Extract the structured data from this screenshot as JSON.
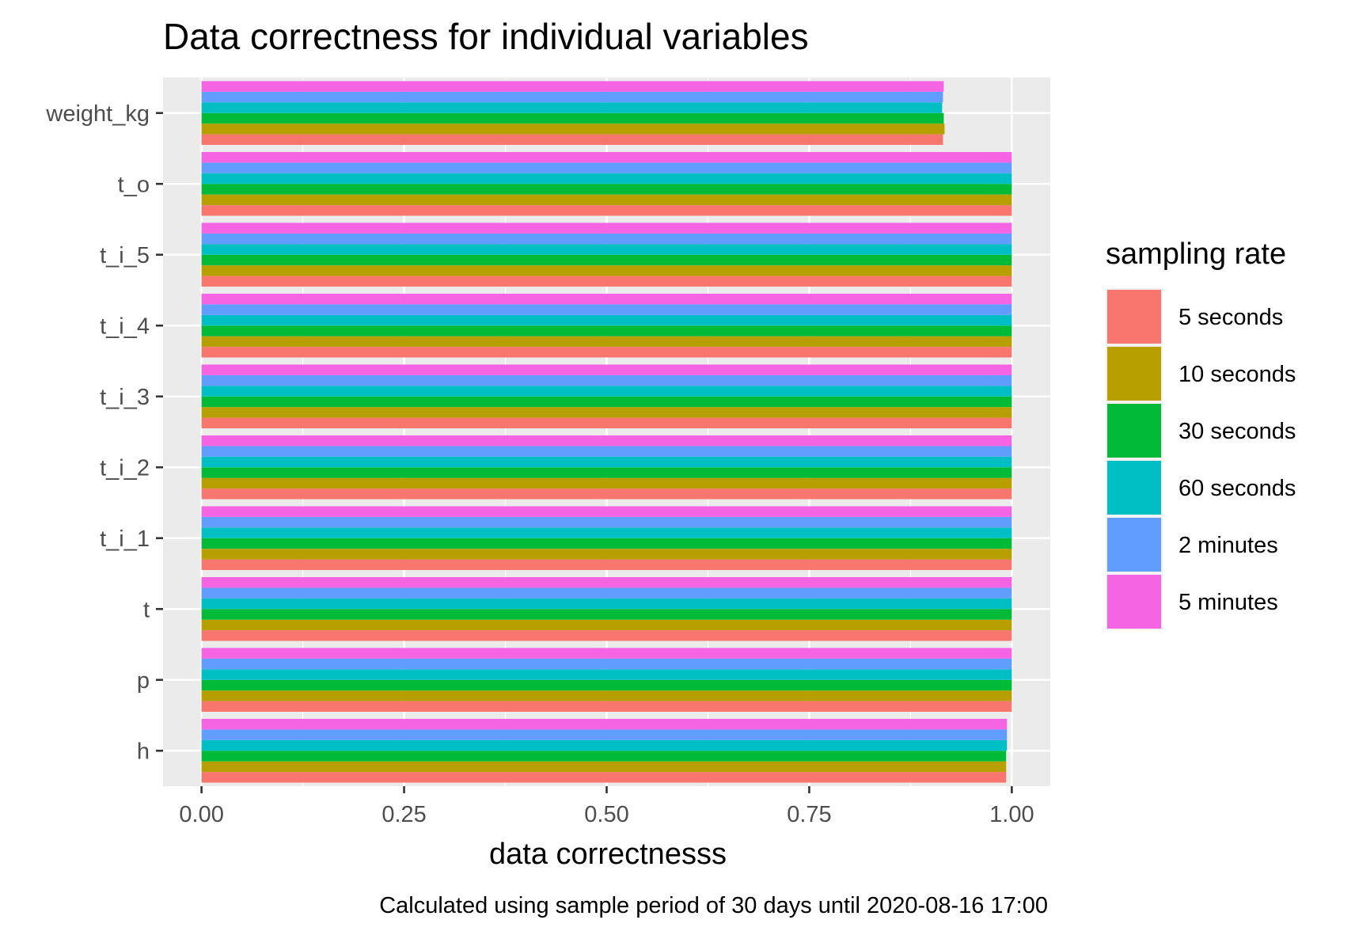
{
  "chart_data": {
    "type": "bar",
    "orientation": "horizontal",
    "title": "Data correctness for individual variables",
    "xlabel": "data correctnesss",
    "ylabel": "",
    "caption": "Calculated using sample period of 30 days until 2020-08-16 17:00",
    "xlim": [
      -0.0475,
      1.0475
    ],
    "x_ticks": [
      0,
      0.25,
      0.5,
      0.75,
      1
    ],
    "x_tick_labels": [
      "0.00",
      "0.25",
      "0.50",
      "0.75",
      "1.00"
    ],
    "categories": [
      "h",
      "p",
      "t",
      "t_i_1",
      "t_i_2",
      "t_i_3",
      "t_i_4",
      "t_i_5",
      "t_o",
      "weight_kg"
    ],
    "grid": true,
    "background": "#ebebeb",
    "legend": {
      "title": "sampling rate",
      "position": "right"
    },
    "series": [
      {
        "name": "5 seconds",
        "color": "#F8766D",
        "values": [
          0.993,
          1.0,
          1.0,
          1.0,
          1.0,
          1.0,
          1.0,
          1.0,
          1.0,
          0.915
        ]
      },
      {
        "name": "10 seconds",
        "color": "#B79F00",
        "values": [
          0.993,
          1.0,
          1.0,
          1.0,
          1.0,
          1.0,
          1.0,
          1.0,
          1.0,
          0.917
        ]
      },
      {
        "name": "30 seconds",
        "color": "#00BA38",
        "values": [
          0.993,
          1.0,
          1.0,
          1.0,
          1.0,
          1.0,
          1.0,
          1.0,
          1.0,
          0.916
        ]
      },
      {
        "name": "60 seconds",
        "color": "#00BFC4",
        "values": [
          0.994,
          1.0,
          1.0,
          1.0,
          1.0,
          1.0,
          1.0,
          1.0,
          1.0,
          0.914
        ]
      },
      {
        "name": "2 minutes",
        "color": "#619CFF",
        "values": [
          0.994,
          1.0,
          1.0,
          1.0,
          1.0,
          1.0,
          1.0,
          1.0,
          1.0,
          0.915
        ]
      },
      {
        "name": "5 minutes",
        "color": "#F564E3",
        "values": [
          0.994,
          1.0,
          1.0,
          1.0,
          1.0,
          1.0,
          1.0,
          1.0,
          1.0,
          0.916
        ]
      }
    ]
  }
}
